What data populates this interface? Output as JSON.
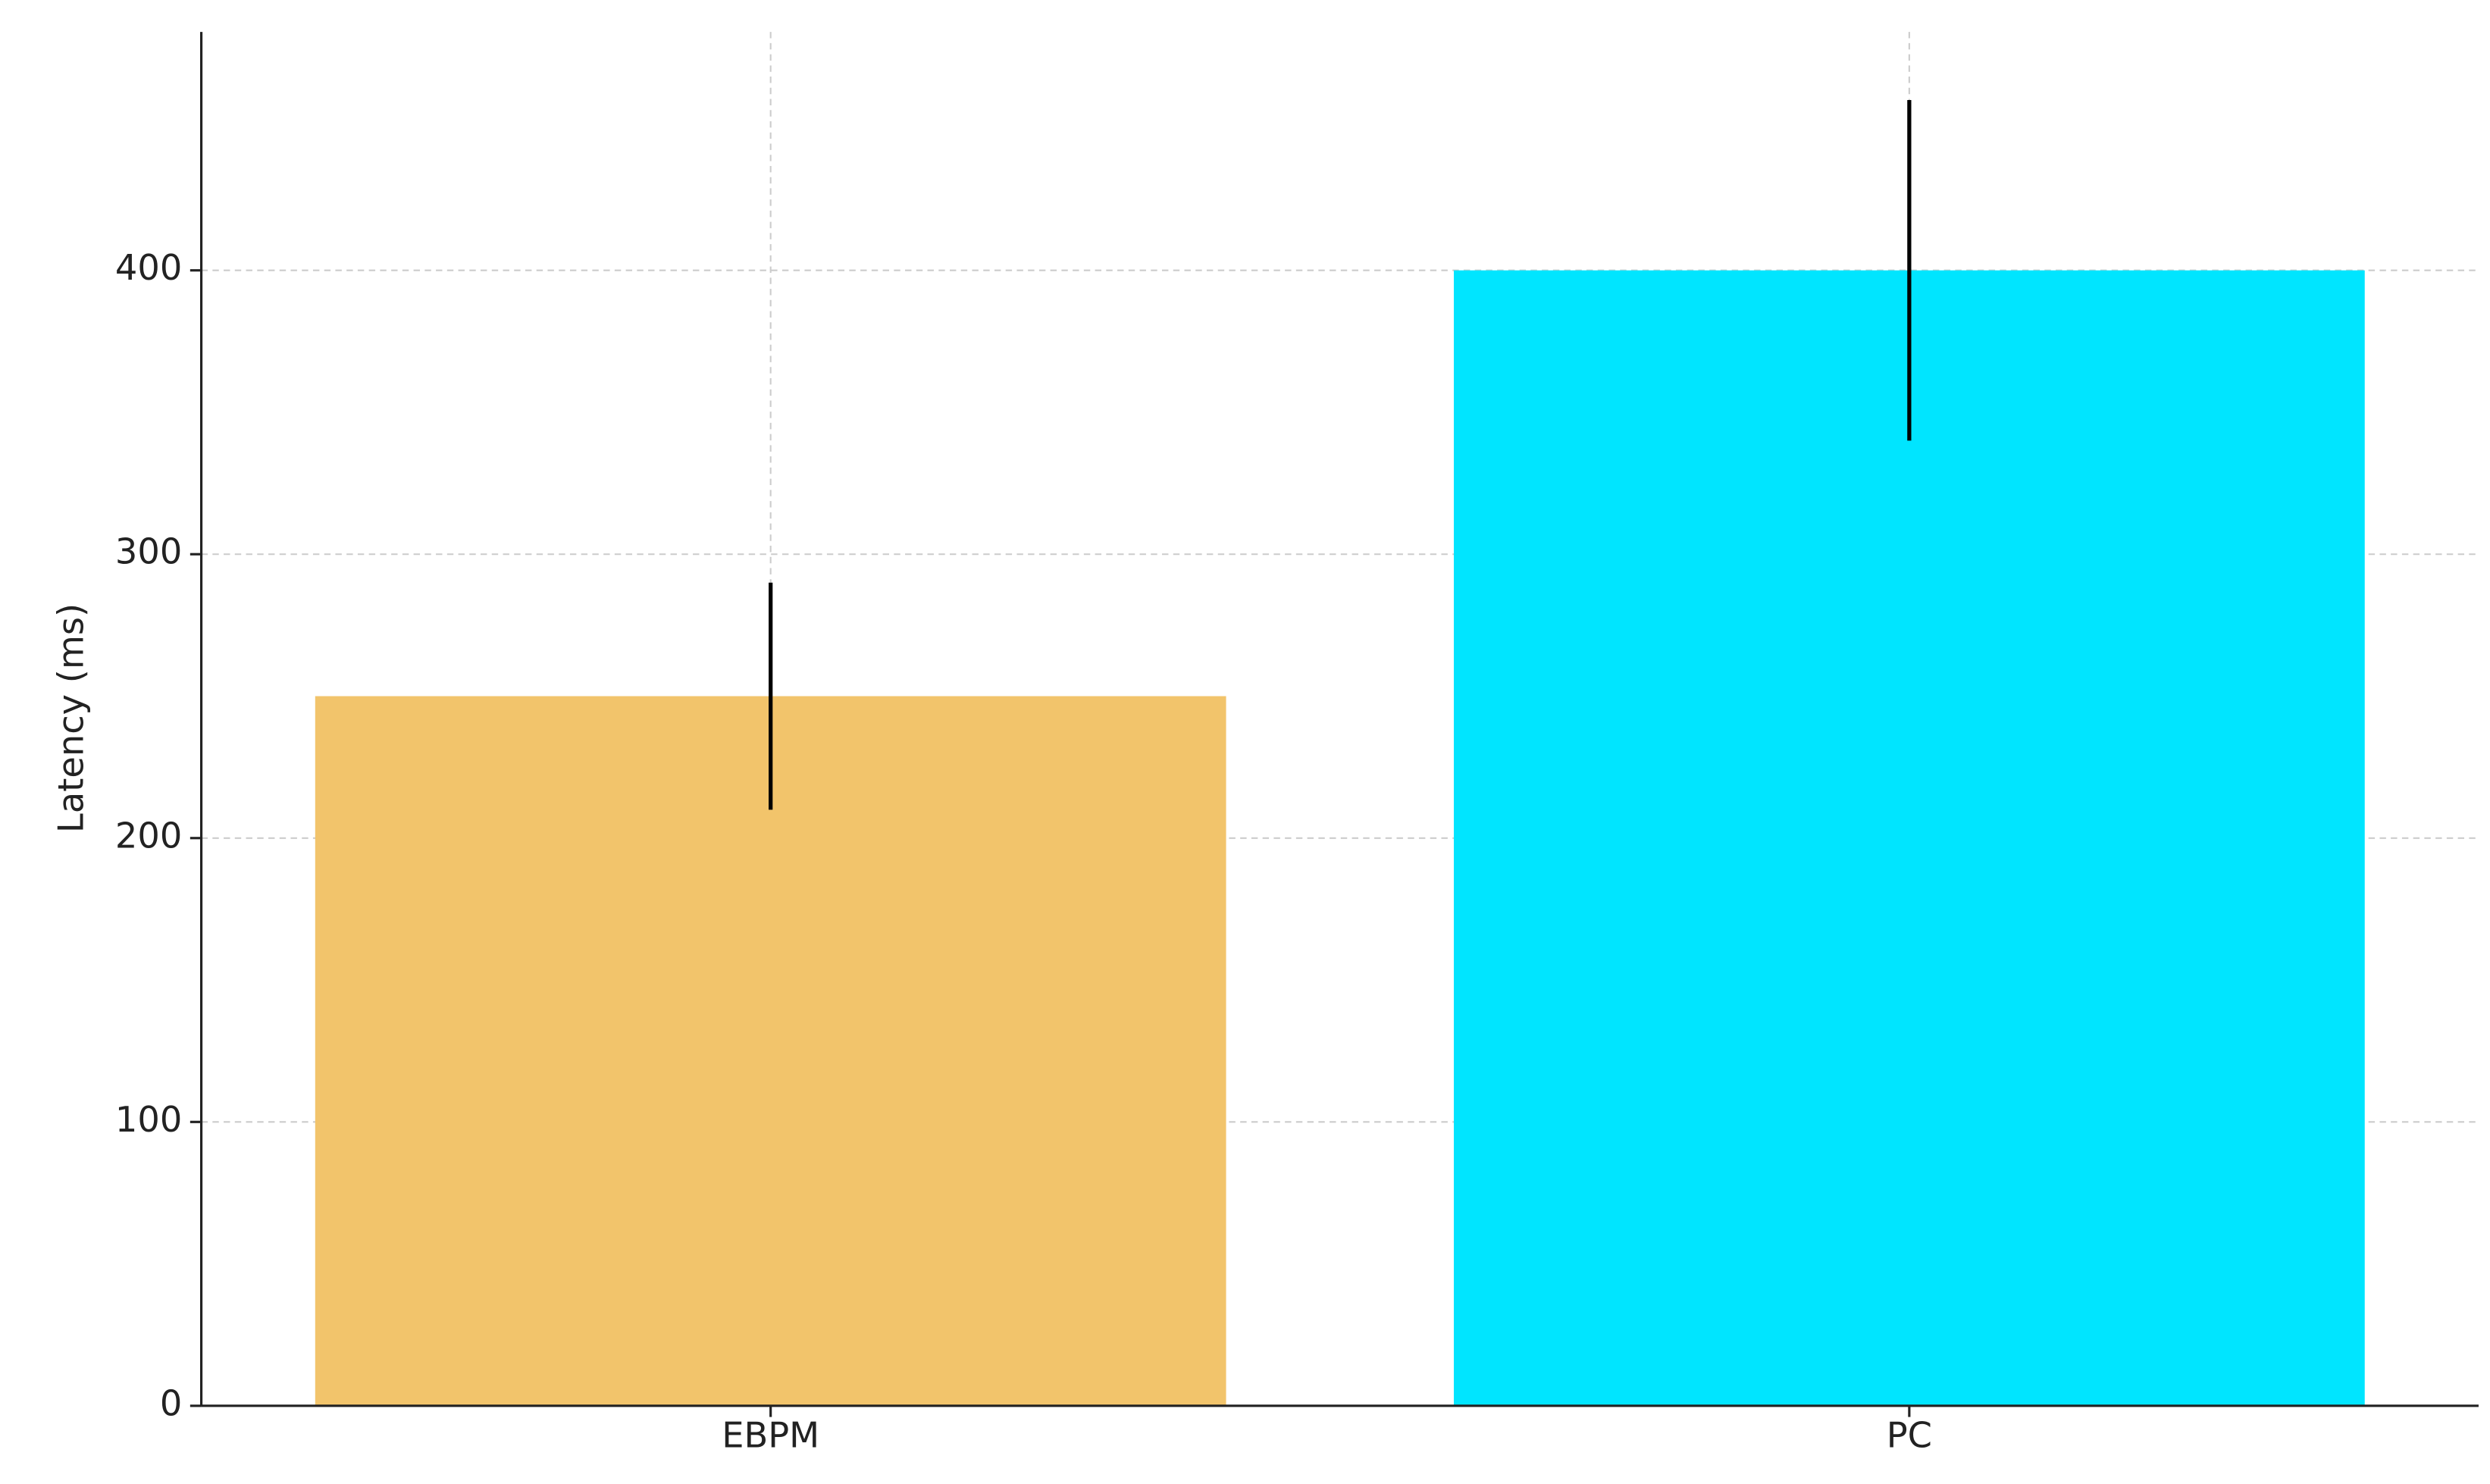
{
  "chart_data": {
    "type": "bar",
    "y_label": "Latency (ms)",
    "categories": [
      "EBPM",
      "PC"
    ],
    "values": [
      250,
      400
    ],
    "errors": [
      40,
      60
    ],
    "colors": [
      "#f2c46b",
      "#00e5ff"
    ],
    "ylim": [
      0,
      484
    ],
    "yticks": [
      0,
      100,
      200,
      300,
      400
    ],
    "grid": true
  }
}
